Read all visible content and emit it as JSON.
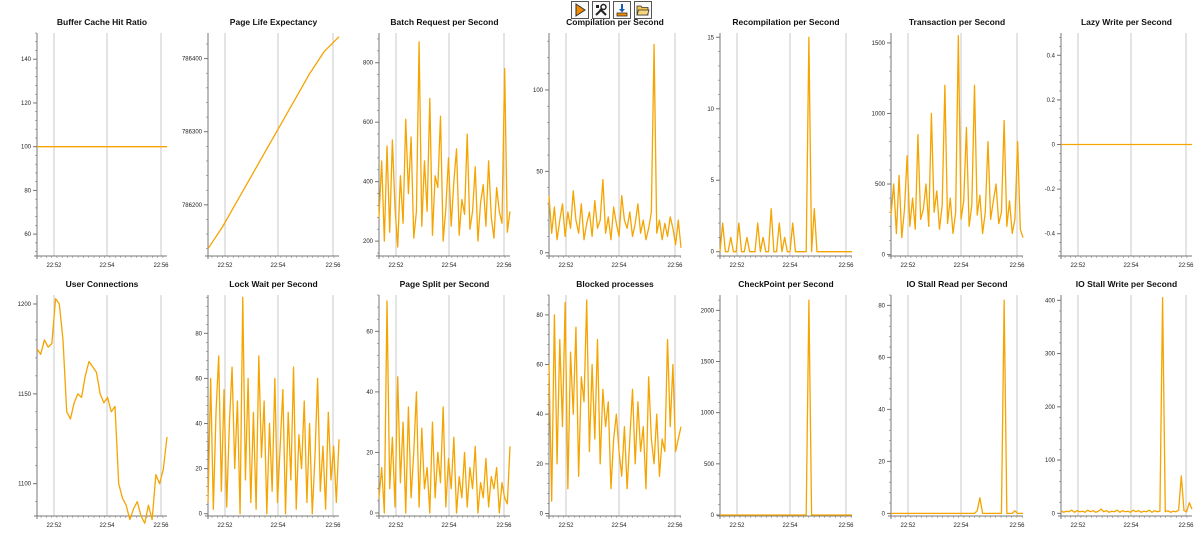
{
  "toolbar": {
    "buttons": [
      {
        "name": "run-button",
        "icon": "play-icon"
      },
      {
        "name": "settings-button",
        "icon": "tools-icon"
      },
      {
        "name": "export-button",
        "icon": "download-icon"
      },
      {
        "name": "open-button",
        "icon": "folder-open-icon"
      }
    ]
  },
  "colors": {
    "series": "#f5a400",
    "grid": "#c8c8c8",
    "axis": "#777777",
    "text": "#111111"
  },
  "chart_data": [
    {
      "type": "line",
      "title": "Buffer Cache Hit Ratio",
      "xticks": [
        "22:52",
        "22:54",
        "22:56"
      ],
      "ylim": [
        50,
        152
      ],
      "yticks": [
        60,
        80,
        100,
        120,
        140
      ],
      "series": [
        {
          "name": "Buffer Cache Hit Ratio",
          "values": [
            100,
            100,
            100,
            100,
            100,
            100,
            100,
            100,
            100,
            100
          ]
        }
      ]
    },
    {
      "type": "line",
      "title": "Page Life Expectancy",
      "xticks": [
        "22:52",
        "22:54",
        "22:56"
      ],
      "ylim": [
        786130,
        786435
      ],
      "yticks": [
        786200,
        786300,
        786400
      ],
      "series": [
        {
          "name": "Page Life Expectancy",
          "values": [
            786140,
            786170,
            786205,
            786240,
            786275,
            786310,
            786345,
            786380,
            786410,
            786430
          ]
        }
      ]
    },
    {
      "type": "line",
      "title": "Batch Request per Second",
      "xticks": [
        "22:52",
        "22:54",
        "22:56"
      ],
      "ylim": [
        150,
        900
      ],
      "yticks": [
        200,
        400,
        600,
        800
      ],
      "series": [
        {
          "name": "Batch Request per Second",
          "values": [
            280,
            470,
            200,
            520,
            230,
            540,
            310,
            180,
            420,
            260,
            610,
            360,
            550,
            210,
            300,
            870,
            250,
            470,
            300,
            680,
            220,
            420,
            380,
            620,
            200,
            310,
            480,
            250,
            400,
            510,
            220,
            340,
            290,
            560,
            240,
            300,
            450,
            200,
            330,
            390,
            250,
            470,
            280,
            210,
            380,
            300,
            260,
            780,
            230,
            300
          ]
        }
      ]
    },
    {
      "type": "line",
      "title": "Compilation per Second",
      "xticks": [
        "22:52",
        "22:54",
        "22:56"
      ],
      "ylim": [
        -2,
        135
      ],
      "yticks": [
        0,
        50,
        100
      ],
      "series": [
        {
          "name": "Compilation per Second",
          "values": [
            35,
            12,
            28,
            8,
            20,
            30,
            10,
            25,
            15,
            38,
            20,
            12,
            30,
            8,
            18,
            25,
            10,
            32,
            15,
            20,
            45,
            12,
            22,
            8,
            28,
            18,
            10,
            35,
            20,
            15,
            25,
            10,
            18,
            30,
            12,
            20,
            8,
            15,
            25,
            128,
            12,
            20,
            8,
            18,
            10,
            22,
            15,
            5,
            20,
            3
          ]
        }
      ]
    },
    {
      "type": "line",
      "title": "Recompilation per Second",
      "xticks": [
        "22:52",
        "22:54",
        "22:56"
      ],
      "ylim": [
        -0.3,
        15.3
      ],
      "yticks": [
        0,
        5,
        10,
        15
      ],
      "series": [
        {
          "name": "Recompilation per Second",
          "values": [
            0,
            2,
            0,
            0,
            1,
            0,
            0,
            2,
            0,
            0,
            1,
            0,
            0,
            0,
            2,
            0,
            1,
            0,
            0,
            3,
            0,
            0,
            2,
            0,
            1,
            0,
            0,
            2,
            0,
            0,
            0,
            0,
            0,
            15,
            0,
            3,
            0,
            0,
            0,
            0,
            0,
            0,
            0,
            0,
            0,
            0,
            0,
            0,
            0,
            0
          ]
        }
      ]
    },
    {
      "type": "line",
      "title": "Transaction per Second",
      "xticks": [
        "22:52",
        "22:54",
        "22:56"
      ],
      "ylim": [
        -10,
        1570
      ],
      "yticks": [
        0,
        500,
        1000,
        1500
      ],
      "series": [
        {
          "name": "Transaction per Second",
          "values": [
            280,
            500,
            150,
            560,
            120,
            320,
            700,
            200,
            400,
            180,
            850,
            250,
            320,
            500,
            200,
            1000,
            300,
            450,
            180,
            350,
            1200,
            220,
            400,
            150,
            300,
            1550,
            250,
            380,
            900,
            200,
            350,
            1200,
            280,
            420,
            150,
            300,
            800,
            250,
            380,
            500,
            220,
            300,
            950,
            200,
            380,
            150,
            250,
            800,
            180,
            120
          ]
        }
      ]
    },
    {
      "type": "line",
      "title": "Lazy Write per Second",
      "xticks": [
        "22:52",
        "22:54",
        "22:56"
      ],
      "ylim": [
        -0.5,
        0.5
      ],
      "yticks": [
        -0.4,
        -0.2,
        0,
        0.2,
        0.4
      ],
      "series": [
        {
          "name": "Lazy Write per Second",
          "values": [
            0,
            0,
            0,
            0,
            0,
            0,
            0,
            0,
            0,
            0
          ]
        }
      ]
    },
    {
      "type": "line",
      "title": "User Connections",
      "xticks": [
        "22:52",
        "22:54",
        "22:56"
      ],
      "ylim": [
        1082,
        1205
      ],
      "yticks": [
        1100,
        1150,
        1200
      ],
      "series": [
        {
          "name": "User Connections",
          "values": [
            1175,
            1172,
            1180,
            1176,
            1178,
            1203,
            1200,
            1180,
            1140,
            1136,
            1145,
            1150,
            1148,
            1160,
            1168,
            1165,
            1162,
            1150,
            1145,
            1148,
            1140,
            1143,
            1100,
            1092,
            1088,
            1080,
            1086,
            1090,
            1082,
            1078,
            1088,
            1080,
            1105,
            1100,
            1108,
            1126
          ]
        }
      ]
    },
    {
      "type": "line",
      "title": "Lock Wait per Second",
      "xticks": [
        "22:52",
        "22:54",
        "22:56"
      ],
      "ylim": [
        -1,
        97
      ],
      "yticks": [
        0,
        20,
        40,
        60,
        80
      ],
      "series": [
        {
          "name": "Lock Wait per Second",
          "values": [
            5,
            60,
            2,
            45,
            70,
            10,
            55,
            3,
            40,
            65,
            20,
            50,
            0,
            96,
            15,
            60,
            5,
            45,
            2,
            70,
            25,
            50,
            0,
            40,
            10,
            60,
            5,
            30,
            55,
            0,
            45,
            15,
            65,
            2,
            35,
            20,
            50,
            5,
            40,
            0,
            25,
            60,
            10,
            30,
            2,
            45,
            15,
            30,
            5,
            33
          ]
        }
      ]
    },
    {
      "type": "line",
      "title": "Page Split per Second",
      "xticks": [
        "22:52",
        "22:54",
        "22:56"
      ],
      "ylim": [
        -1,
        72
      ],
      "yticks": [
        0,
        20,
        40,
        60
      ],
      "series": [
        {
          "name": "Page Split per Second",
          "values": [
            5,
            15,
            0,
            70,
            8,
            25,
            2,
            45,
            10,
            30,
            0,
            35,
            5,
            20,
            40,
            2,
            28,
            8,
            15,
            0,
            30,
            5,
            20,
            10,
            35,
            2,
            18,
            8,
            25,
            0,
            12,
            5,
            20,
            2,
            15,
            8,
            22,
            0,
            10,
            5,
            18,
            2,
            12,
            8,
            15,
            0,
            10,
            5,
            3,
            22
          ]
        }
      ]
    },
    {
      "type": "line",
      "title": "Blocked processes",
      "xticks": [
        "22:52",
        "22:54",
        "22:56"
      ],
      "ylim": [
        -1,
        88
      ],
      "yticks": [
        0,
        20,
        40,
        60,
        80
      ],
      "series": [
        {
          "name": "Blocked processes",
          "values": [
            60,
            5,
            80,
            20,
            70,
            35,
            85,
            10,
            65,
            40,
            75,
            15,
            55,
            45,
            86,
            25,
            60,
            30,
            70,
            20,
            50,
            35,
            45,
            10,
            30,
            40,
            25,
            15,
            35,
            10,
            30,
            50,
            20,
            45,
            25,
            35,
            10,
            55,
            30,
            20,
            40,
            15,
            30,
            25,
            70,
            35,
            60,
            25,
            30,
            35
          ]
        }
      ]
    },
    {
      "type": "line",
      "title": "CheckPoint per Second",
      "xticks": [
        "22:52",
        "22:54",
        "22:56"
      ],
      "ylim": [
        -10,
        2150
      ],
      "yticks": [
        0,
        500,
        1000,
        1500,
        2000
      ],
      "series": [
        {
          "name": "CheckPoint per Second",
          "values": [
            0,
            0,
            0,
            0,
            0,
            0,
            0,
            0,
            0,
            0,
            0,
            0,
            0,
            0,
            0,
            0,
            0,
            0,
            0,
            0,
            0,
            0,
            0,
            0,
            0,
            0,
            0,
            0,
            0,
            0,
            0,
            0,
            0,
            2100,
            0,
            0,
            0,
            0,
            0,
            0,
            0,
            0,
            0,
            0,
            0,
            0,
            0,
            0,
            0,
            0
          ]
        }
      ]
    },
    {
      "type": "line",
      "title": "IO Stall Read per Second",
      "xticks": [
        "22:52",
        "22:54",
        "22:56"
      ],
      "ylim": [
        -1,
        84
      ],
      "yticks": [
        0,
        20,
        40,
        60,
        80
      ],
      "series": [
        {
          "name": "IO Stall Read per Second",
          "values": [
            0,
            0,
            0,
            0,
            0,
            0,
            0,
            0,
            0,
            0,
            0,
            0,
            0,
            0,
            0,
            0,
            0,
            0,
            0,
            0,
            0,
            0,
            0,
            0,
            0,
            0,
            0,
            0,
            0,
            0,
            0,
            0,
            1,
            6,
            0,
            0,
            0,
            0,
            0,
            0,
            0,
            0,
            82,
            0,
            0,
            0,
            1,
            0,
            0,
            0
          ]
        }
      ]
    },
    {
      "type": "line",
      "title": "IO Stall Write per Second",
      "xticks": [
        "22:52",
        "22:54",
        "22:56"
      ],
      "ylim": [
        -5,
        410
      ],
      "yticks": [
        0,
        100,
        200,
        300,
        400
      ],
      "series": [
        {
          "name": "IO Stall Write per Second",
          "values": [
            5,
            2,
            4,
            3,
            6,
            2,
            5,
            3,
            4,
            2,
            6,
            3,
            5,
            2,
            4,
            8,
            3,
            5,
            2,
            4,
            3,
            6,
            2,
            5,
            3,
            4,
            2,
            6,
            3,
            5,
            2,
            4,
            3,
            6,
            2,
            5,
            3,
            4,
            405,
            3,
            5,
            2,
            4,
            3,
            6,
            70,
            5,
            3,
            20,
            8
          ]
        }
      ]
    }
  ]
}
